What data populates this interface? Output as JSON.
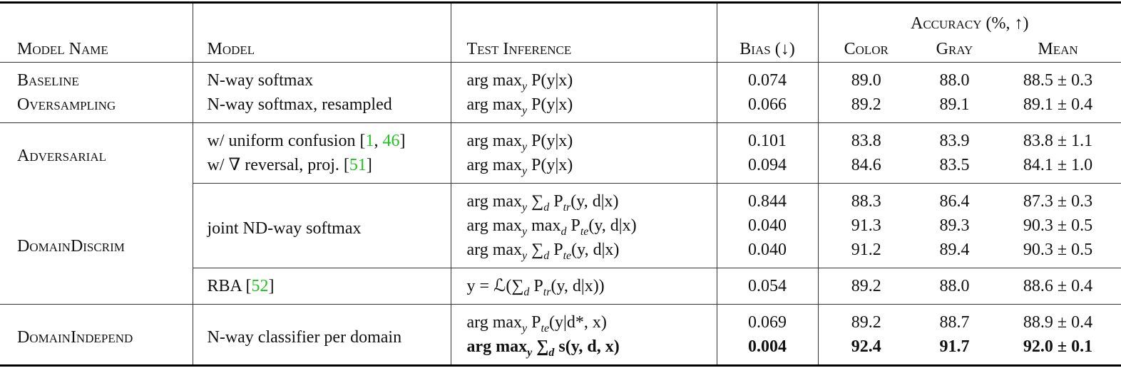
{
  "table": {
    "header": {
      "model_name": "Model Name",
      "model": "Model",
      "test_inference": "Test Inference",
      "bias": "Bias (↓)",
      "accuracy": "Accuracy (%, ↑)",
      "color": "Color",
      "gray": "Gray",
      "mean": "Mean"
    },
    "rows": [
      {
        "name": "Baseline",
        "model": [
          "N-way softmax"
        ],
        "inference": [
          "arg max",
          "y",
          " P(y|x)"
        ],
        "bias": "0.074",
        "color": "89.0",
        "gray": "88.0",
        "mean": "88.5 ± 0.3"
      },
      {
        "name": "Oversampling",
        "model": [
          "N-way softmax, resampled"
        ],
        "inference": [
          "arg max",
          "y",
          " P(y|x)"
        ],
        "bias": "0.066",
        "color": "89.2",
        "gray": "89.1",
        "mean": "89.1 ± 0.4"
      },
      {
        "name": "Adversarial",
        "model": [
          "w/ uniform confusion [",
          "1",
          ", ",
          "46",
          "]"
        ],
        "inference": [
          "arg max",
          "y",
          " P(y|x)"
        ],
        "bias": "0.101",
        "color": "83.8",
        "gray": "83.9",
        "mean": "83.8 ± 1.1"
      },
      {
        "model": [
          "w/ ∇ reversal, proj. [",
          "51",
          "]"
        ],
        "inference": [
          "arg max",
          "y",
          " P(y|x)"
        ],
        "bias": "0.094",
        "color": "84.6",
        "gray": "83.5",
        "mean": "84.1 ± 1.0"
      },
      {
        "name": "DomainDiscrim",
        "model": [
          "joint ND-way softmax"
        ],
        "inference": [
          "arg max",
          "y",
          " ∑",
          "d",
          " P",
          "tr",
          "(y, d|x)"
        ],
        "bias": "0.844",
        "color": "88.3",
        "gray": "86.4",
        "mean": "87.3 ± 0.3"
      },
      {
        "inference": [
          "arg max",
          "y",
          " max",
          "d",
          " P",
          "te",
          "(y, d|x)"
        ],
        "bias": "0.040",
        "color": "91.3",
        "gray": "89.3",
        "mean": "90.3 ± 0.5"
      },
      {
        "inference": [
          "arg max",
          "y",
          " ∑",
          "d",
          " P",
          "te",
          "(y, d|x)"
        ],
        "bias": "0.040",
        "color": "91.2",
        "gray": "89.4",
        "mean": "90.3 ± 0.5"
      },
      {
        "model": [
          "RBA [",
          "52",
          "]"
        ],
        "inference": [
          "y = ℒ(∑",
          "d",
          " P",
          "tr",
          "(y, d|x))"
        ],
        "bias": "0.054",
        "color": "89.2",
        "gray": "88.0",
        "mean": "88.6 ± 0.4"
      },
      {
        "name": "DomainIndepend",
        "model": [
          "N-way classifier per domain"
        ],
        "inference": [
          "arg max",
          "y",
          " P",
          "te",
          "(y|d*, x)"
        ],
        "bias": "0.069",
        "color": "89.2",
        "gray": "88.7",
        "mean": "88.9 ± 0.4"
      },
      {
        "inference": [
          "arg max",
          "y",
          " ∑",
          "d",
          " s(y, d, x)"
        ],
        "bias": "0.004",
        "color": "92.4",
        "gray": "91.7",
        "mean": "92.0 ± 0.1"
      }
    ]
  }
}
